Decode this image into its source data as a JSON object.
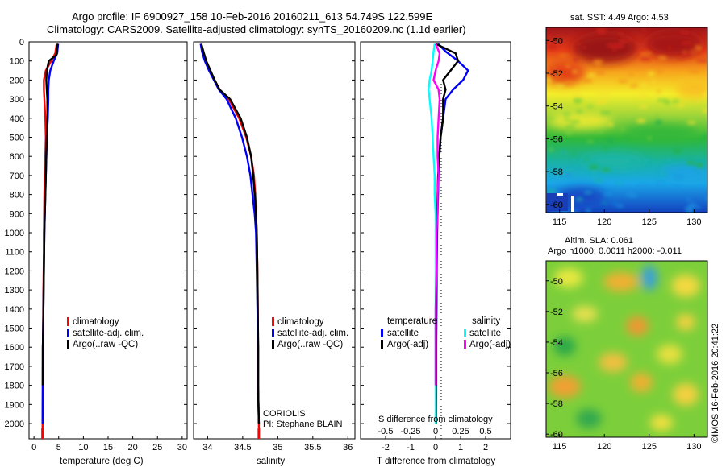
{
  "header": {
    "line1": "Argo profile: IF 6900927_158 10-Feb-2016 20160211_613 54.749S 122.599E",
    "line2": "Climatology: CARS2009. Satellite-adjusted climatology: synTS_20160209.nc (1.1d earlier)"
  },
  "colors": {
    "climatology": "#ff0000",
    "satellite_adj": "#0000ff",
    "argo": "#000000",
    "s_satellite": "#00ffff",
    "s_argo": "#ff00ff"
  },
  "chart_data": [
    {
      "type": "line",
      "name": "temperature-profile",
      "xlabel": "temperature (deg C)",
      "xlim": [
        -1,
        31
      ],
      "ylim": [
        2080,
        0
      ],
      "xticks": [
        "0",
        "5",
        "10",
        "15",
        "20",
        "25",
        "30"
      ],
      "yticks": [
        "0",
        "100",
        "200",
        "300",
        "400",
        "500",
        "600",
        "700",
        "800",
        "900",
        "1000",
        "1100",
        "1200",
        "1300",
        "1400",
        "1500",
        "1600",
        "1700",
        "1800",
        "1900",
        "2000"
      ],
      "legend": [
        "climatology",
        "satellite-adj. clim.",
        "Argo(..raw -QC)"
      ],
      "series": [
        {
          "name": "climatology",
          "x": [
            4.6,
            4.3,
            3.5,
            2.4,
            2.0,
            2.0,
            2.1,
            2.3,
            2.4,
            2.3,
            2.2,
            2.1,
            2.05,
            2.0,
            2.0,
            1.95,
            1.9,
            1.88,
            1.85,
            1.8,
            1.78,
            1.75,
            1.72
          ],
          "y": [
            10,
            60,
            100,
            150,
            200,
            250,
            300,
            400,
            500,
            600,
            700,
            800,
            900,
            1000,
            1100,
            1200,
            1300,
            1400,
            1500,
            1600,
            1800,
            2000,
            2050
          ]
        },
        {
          "name": "satellite-adj. clim.",
          "x": [
            4.9,
            4.7,
            4.0,
            3.3,
            3.0,
            2.9,
            2.9,
            2.8,
            2.6,
            2.5,
            2.4,
            2.3,
            2.2,
            2.1,
            2.05,
            2.0,
            1.95,
            1.9,
            1.85,
            1.8,
            1.78,
            1.75
          ],
          "y": [
            10,
            60,
            100,
            150,
            200,
            250,
            300,
            400,
            500,
            600,
            700,
            800,
            900,
            1000,
            1100,
            1200,
            1300,
            1400,
            1500,
            1600,
            1800,
            2000
          ]
        },
        {
          "name": "Argo(..raw -QC)",
          "x": [
            4.8,
            4.5,
            3.0,
            2.6,
            2.5,
            2.6,
            2.7,
            2.7,
            2.6,
            2.5,
            2.4,
            2.3,
            2.2,
            2.1,
            2.05,
            2.0,
            1.95,
            1.9,
            1.85,
            1.8,
            1.78
          ],
          "y": [
            10,
            70,
            100,
            150,
            200,
            250,
            300,
            400,
            500,
            600,
            700,
            800,
            900,
            1000,
            1100,
            1200,
            1300,
            1400,
            1500,
            1600,
            1800
          ]
        }
      ]
    },
    {
      "type": "line",
      "name": "salinity-profile",
      "xlabel": "salinity",
      "xlim": [
        33.8,
        36.1
      ],
      "ylim": [
        2080,
        0
      ],
      "xticks": [
        "34",
        "34.5",
        "35",
        "35.5",
        "36"
      ],
      "legend": [
        "climatology",
        "satellite-adj. clim.",
        "Argo(..raw -QC)"
      ],
      "annotations": [
        "CORIOLIS",
        "PI: Stephane BLAIN"
      ],
      "series": [
        {
          "name": "climatology",
          "x": [
            33.91,
            33.93,
            33.97,
            34.03,
            34.1,
            34.17,
            34.3,
            34.45,
            34.55,
            34.62,
            34.66,
            34.68,
            34.69,
            34.7,
            34.71,
            34.715,
            34.72,
            34.72,
            34.725,
            34.73,
            34.73
          ],
          "y": [
            10,
            50,
            100,
            150,
            200,
            250,
            300,
            400,
            500,
            600,
            700,
            800,
            900,
            1000,
            1200,
            1400,
            1600,
            1800,
            1900,
            2000,
            2050
          ]
        },
        {
          "name": "satellite-adj. clim.",
          "x": [
            33.9,
            33.92,
            33.96,
            34.02,
            34.09,
            34.16,
            34.27,
            34.4,
            34.49,
            34.56,
            34.61,
            34.64,
            34.67,
            34.69,
            34.7,
            34.71,
            34.72,
            34.72,
            34.725,
            34.73
          ],
          "y": [
            10,
            50,
            100,
            150,
            200,
            250,
            300,
            400,
            500,
            600,
            700,
            800,
            900,
            1000,
            1200,
            1400,
            1600,
            1800,
            1900,
            2000
          ]
        },
        {
          "name": "Argo(..raw -QC)",
          "x": [
            33.91,
            33.94,
            33.98,
            34.04,
            34.1,
            34.17,
            34.32,
            34.47,
            34.56,
            34.62,
            34.65,
            34.67,
            34.69,
            34.7,
            34.71,
            34.715,
            34.72,
            34.72,
            34.725,
            34.73
          ],
          "y": [
            10,
            50,
            100,
            150,
            200,
            250,
            300,
            400,
            500,
            600,
            700,
            800,
            900,
            1000,
            1200,
            1400,
            1600,
            1800,
            1900,
            2000
          ]
        }
      ]
    },
    {
      "type": "line",
      "name": "difference-profile",
      "xlabel": "T difference from climatology",
      "xlabel_top": "S difference from climatology",
      "xlim": [
        -3,
        3
      ],
      "ylim": [
        2080,
        0
      ],
      "xticks": [
        "-2",
        "-1",
        "0",
        "1",
        "2"
      ],
      "xticks_top": [
        "-0.5",
        "-0.25",
        "0",
        "0.25",
        "0.5"
      ],
      "legend_titles": [
        "temperature",
        "salinity"
      ],
      "legend": [
        "satellite",
        "Argo(-adj)",
        "satellite",
        "Argo(-adj)"
      ],
      "series": [
        {
          "name": "satellite",
          "variable": "temperature",
          "x": [
            0.1,
            0.4,
            0.9,
            1.3,
            1.1,
            0.7,
            0.4,
            0.3,
            0.2,
            0.15,
            0.12,
            0.1,
            0.08,
            0.06,
            0.05,
            0.04,
            0.03,
            0.03,
            0.02
          ],
          "y": [
            10,
            50,
            100,
            150,
            200,
            250,
            300,
            400,
            500,
            600,
            700,
            800,
            900,
            1000,
            1200,
            1400,
            1600,
            1800,
            2000
          ]
        },
        {
          "name": "Argo(-adj)",
          "variable": "temperature",
          "x": [
            0.0,
            0.8,
            0.9,
            0.6,
            0.3,
            0.4,
            0.3,
            0.3,
            0.2,
            0.15,
            0.1,
            0.08,
            0.06,
            0.05,
            0.04,
            0.03,
            0.02,
            0.02
          ],
          "y": [
            10,
            60,
            100,
            150,
            200,
            250,
            300,
            400,
            500,
            600,
            700,
            800,
            900,
            1000,
            1200,
            1400,
            1600,
            1800
          ]
        },
        {
          "name": "satellite",
          "variable": "salinity",
          "x": [
            -0.01,
            -0.02,
            -0.03,
            -0.04,
            -0.06,
            -0.07,
            -0.06,
            -0.04,
            -0.03,
            -0.02,
            -0.01,
            -0.01,
            0.0,
            0.0,
            0.0,
            0.0,
            0.0,
            0.0,
            0.0
          ],
          "y": [
            10,
            50,
            100,
            150,
            200,
            250,
            300,
            400,
            500,
            600,
            700,
            800,
            900,
            1000,
            1200,
            1400,
            1600,
            1800,
            2000
          ]
        },
        {
          "name": "Argo(-adj)",
          "variable": "salinity",
          "x": [
            0.0,
            0.04,
            0.03,
            0.0,
            -0.02,
            0.03,
            0.04,
            0.03,
            0.02,
            0.02,
            0.03,
            0.02,
            0.02,
            0.01,
            0.01,
            0.0,
            0.0,
            0.0
          ],
          "y": [
            10,
            60,
            100,
            150,
            200,
            250,
            300,
            400,
            500,
            600,
            700,
            800,
            900,
            1000,
            1200,
            1400,
            1600,
            1800
          ]
        }
      ]
    },
    {
      "type": "heatmap",
      "name": "sst-map",
      "title": "sat. SST: 4.49 Argo: 4.53",
      "xlim": [
        113.5,
        131.5
      ],
      "ylim": [
        -60.5,
        -49.2
      ],
      "xticks": [
        "115",
        "120",
        "125",
        "130"
      ],
      "yticks": [
        "-50",
        "-52",
        "-54",
        "-56",
        "-58",
        "-60"
      ]
    },
    {
      "type": "heatmap",
      "name": "sla-map",
      "title": "Altim. SLA: 0.061",
      "subtitle": "Argo h1000: 0.0011 h2000: -0.011",
      "xlim": [
        113.5,
        131.5
      ],
      "ylim": [
        -60.2,
        -48.7
      ],
      "xticks": [
        "115",
        "120",
        "125",
        "130"
      ],
      "yticks": [
        "-50",
        "-52",
        "-54",
        "-56",
        "-58",
        "-60"
      ]
    }
  ],
  "watermark": "©IMOS 16-Feb-2016 20:41:22"
}
